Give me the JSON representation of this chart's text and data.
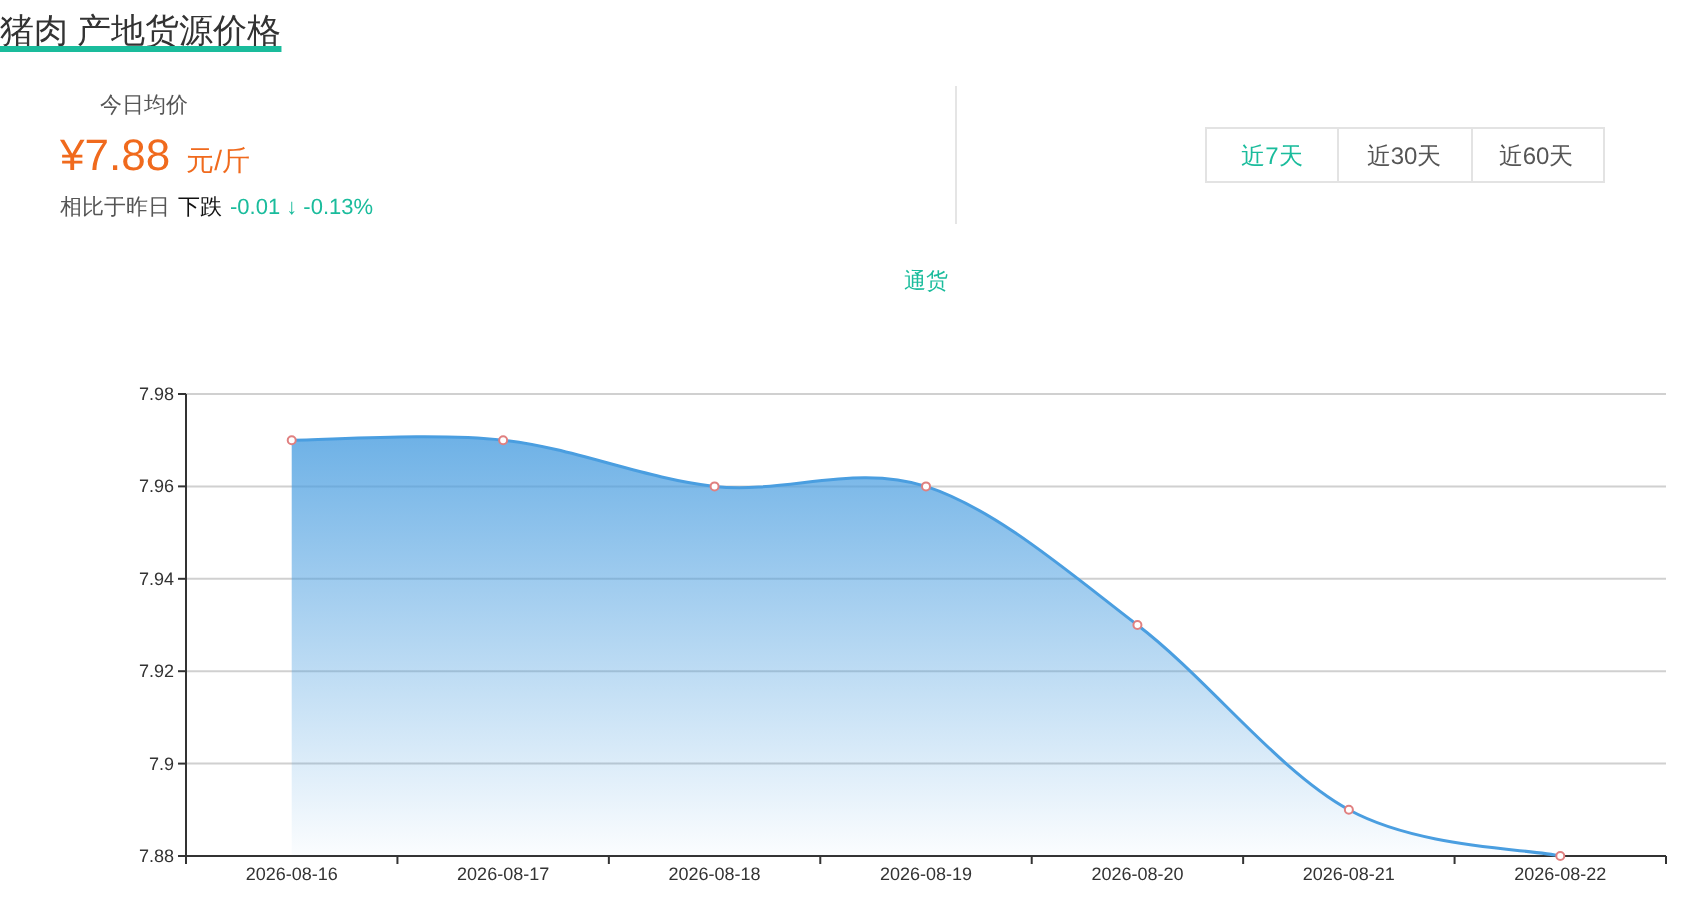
{
  "chart_data": {
    "type": "area",
    "title": "猪肉 产地货源价格",
    "annotations": [
      "今日均价",
      "¥7.88",
      "元/斤",
      "相比于昨日",
      "下跌",
      "-0.01 ↓ -0.13%",
      "近7天",
      "近30天",
      "近60天"
    ],
    "categories": [
      "2026-08-16",
      "2026-08-17",
      "2026-08-18",
      "2026-08-19",
      "2026-08-20",
      "2026-08-21",
      "2026-08-22"
    ],
    "series": [
      {
        "name": "通货",
        "color": "#4a9ee0",
        "values": [
          7.97,
          7.97,
          7.96,
          7.96,
          7.93,
          7.89,
          7.88
        ]
      }
    ],
    "ylim": [
      7.88,
      7.98
    ],
    "yticks": [
      7.88,
      7.9,
      7.92,
      7.94,
      7.96,
      7.98
    ],
    "grid": "y",
    "legend": "top",
    "marker": "circle"
  }
}
